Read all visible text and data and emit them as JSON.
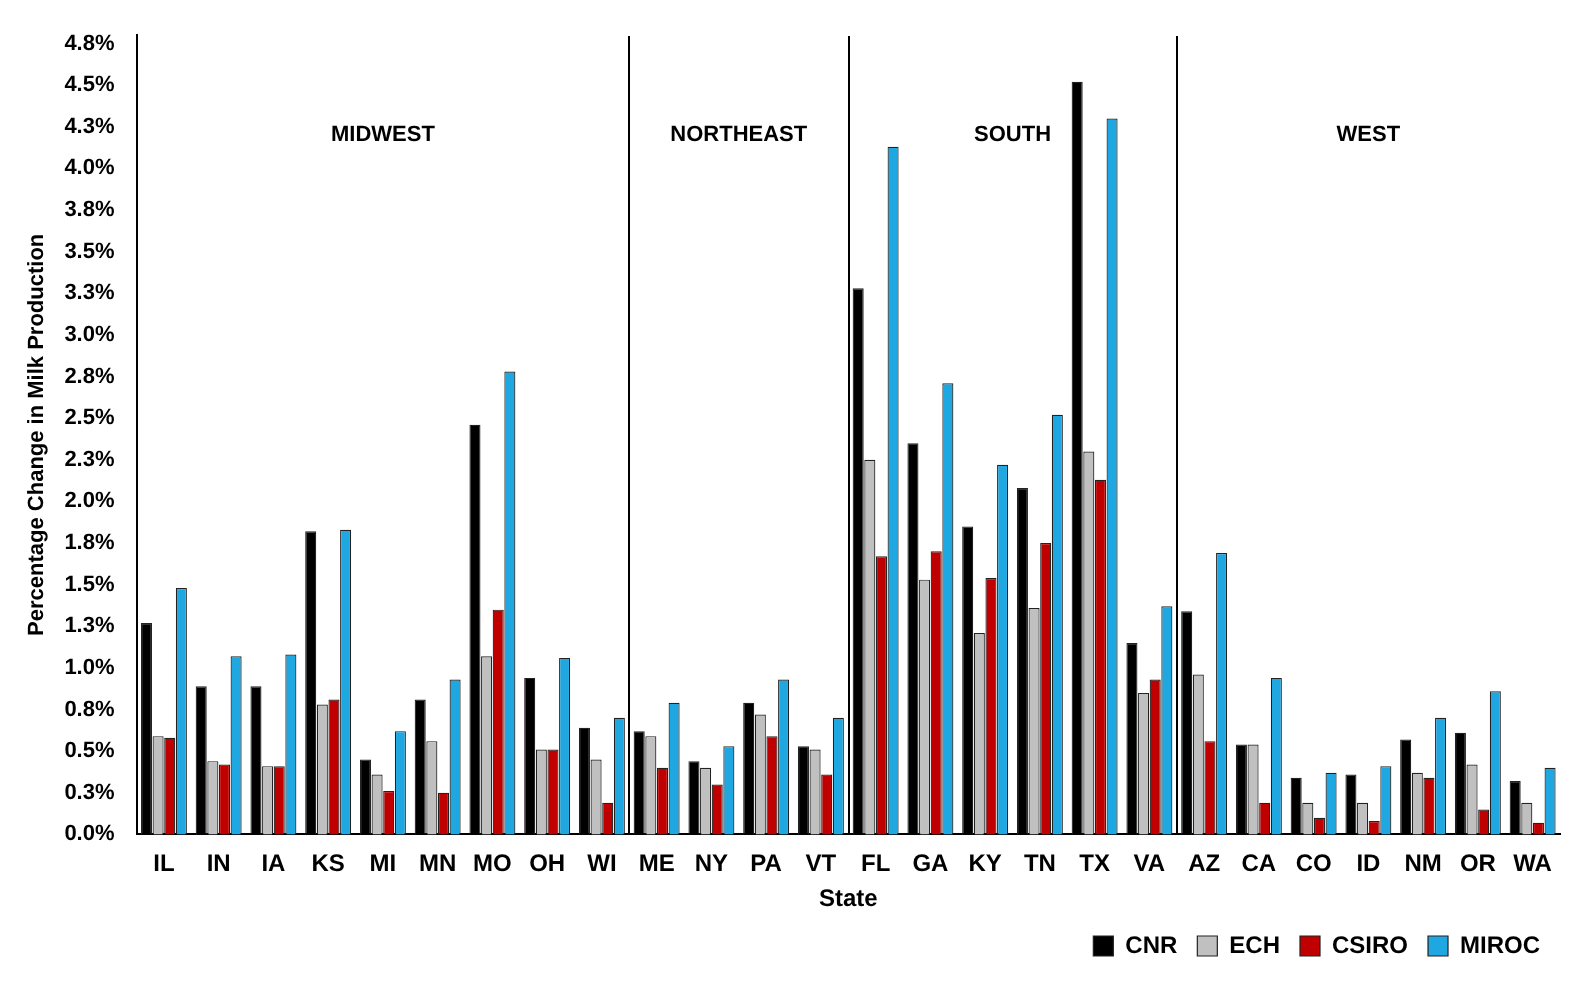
{
  "chart_data": {
    "type": "bar",
    "xlabel": "State",
    "ylabel": "Percentage Change in Milk Production",
    "categories": [
      "IL",
      "IN",
      "IA",
      "KS",
      "MI",
      "MN",
      "MO",
      "OH",
      "WI",
      "ME",
      "NY",
      "PA",
      "VT",
      "FL",
      "GA",
      "KY",
      "TN",
      "TX",
      "VA",
      "AZ",
      "CA",
      "CO",
      "ID",
      "NM",
      "OR",
      "WA"
    ],
    "series": [
      {
        "name": "CNR",
        "color": "#000000",
        "values": [
          1.27,
          0.89,
          0.89,
          1.82,
          0.45,
          0.81,
          2.46,
          0.94,
          0.64,
          0.62,
          0.44,
          0.79,
          0.53,
          3.28,
          2.35,
          1.85,
          2.08,
          4.52,
          1.15,
          1.34,
          0.54,
          0.34,
          0.36,
          0.57,
          0.61,
          0.32
        ]
      },
      {
        "name": "ECH",
        "color": "#c0c0c0",
        "values": [
          0.59,
          0.44,
          0.41,
          0.78,
          0.36,
          0.56,
          1.07,
          0.51,
          0.45,
          0.59,
          0.4,
          0.72,
          0.51,
          2.25,
          1.53,
          1.21,
          1.36,
          2.3,
          0.85,
          0.96,
          0.54,
          0.19,
          0.19,
          0.37,
          0.42,
          0.19
        ]
      },
      {
        "name": "CSIRO",
        "color": "#c00000",
        "values": [
          0.58,
          0.42,
          0.41,
          0.81,
          0.26,
          0.25,
          1.35,
          0.51,
          0.19,
          0.4,
          0.3,
          0.59,
          0.36,
          1.67,
          1.7,
          1.54,
          1.75,
          2.13,
          0.93,
          0.56,
          0.19,
          0.1,
          0.08,
          0.34,
          0.15,
          0.07
        ]
      },
      {
        "name": "MIROC",
        "color": "#1ea7e1",
        "values": [
          1.48,
          1.07,
          1.08,
          1.83,
          0.62,
          0.93,
          2.78,
          1.06,
          0.7,
          0.79,
          0.53,
          0.93,
          0.7,
          4.13,
          2.71,
          2.22,
          2.52,
          4.3,
          1.37,
          1.69,
          0.94,
          0.37,
          0.41,
          0.7,
          0.86,
          0.4
        ]
      }
    ],
    "ylim": [
      0,
      4.8
    ],
    "yticks": [
      {
        "value": 0,
        "label": "0.0%"
      },
      {
        "value": 0.25,
        "label": "0.3%"
      },
      {
        "value": 0.5,
        "label": "0.5%"
      },
      {
        "value": 0.75,
        "label": "0.8%"
      },
      {
        "value": 1,
        "label": "1.0%"
      },
      {
        "value": 1.25,
        "label": "1.3%"
      },
      {
        "value": 1.5,
        "label": "1.5%"
      },
      {
        "value": 1.75,
        "label": "1.8%"
      },
      {
        "value": 2,
        "label": "2.0%"
      },
      {
        "value": 2.25,
        "label": "2.3%"
      },
      {
        "value": 2.5,
        "label": "2.5%"
      },
      {
        "value": 2.75,
        "label": "2.8%"
      },
      {
        "value": 3,
        "label": "3.0%"
      },
      {
        "value": 3.25,
        "label": "3.3%"
      },
      {
        "value": 3.5,
        "label": "3.5%"
      },
      {
        "value": 3.75,
        "label": "3.8%"
      },
      {
        "value": 4,
        "label": "4.0%"
      },
      {
        "value": 4.25,
        "label": "4.3%"
      },
      {
        "value": 4.5,
        "label": "4.5%"
      },
      {
        "value": 4.75,
        "label": "4.8%"
      }
    ],
    "annotations": [
      "MIDWEST",
      "NORTHEAST",
      "SOUTH",
      "WEST"
    ],
    "grid": false,
    "legend": "bottom right"
  }
}
